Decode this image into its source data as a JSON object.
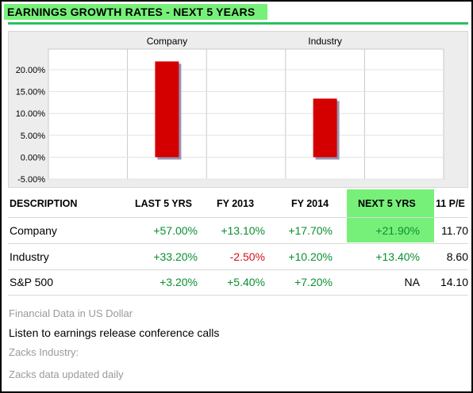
{
  "header": {
    "title": "EARNINGS GROWTH RATES - NEXT 5 YEARS"
  },
  "chart_data": {
    "type": "bar",
    "categories": [
      "Company",
      "Industry"
    ],
    "values": [
      21.9,
      13.4
    ],
    "yticks": [
      "20.00%",
      "15.00%",
      "10.00%",
      "5.00%",
      "0.00%",
      "-5.00%"
    ],
    "ylim": [
      -5,
      25
    ],
    "bar_color": "#d40000",
    "title": "",
    "xlabel": "",
    "ylabel": "",
    "grid": true
  },
  "table": {
    "columns": [
      "DESCRIPTION",
      "LAST 5 YRS",
      "FY 2013",
      "FY 2014",
      "NEXT 5 YRS",
      "11 P/E"
    ],
    "rows": [
      {
        "name": "Company",
        "last5": "+57.00%",
        "fy2013": "+13.10%",
        "fy2014": "+17.70%",
        "next5": "+21.90%",
        "pe": "11.70"
      },
      {
        "name": "Industry",
        "last5": "+33.20%",
        "fy2013": "-2.50%",
        "fy2014": "+10.20%",
        "next5": "+13.40%",
        "pe": "8.60"
      },
      {
        "name": "S&P 500",
        "last5": "+3.20%",
        "fy2013": "+5.40%",
        "fy2014": "+7.20%",
        "next5": "NA",
        "pe": "14.10"
      }
    ]
  },
  "footer": {
    "currency_note": "Financial Data in US Dollar",
    "conference_link": "Listen to earnings release conference calls",
    "industry_label": "Zacks Industry:",
    "update_note": "Zacks data updated daily"
  },
  "colors": {
    "accent": "#77f07a",
    "positive": "#0a8f2f",
    "negative": "#d4101a",
    "rule": "#2bbf62"
  }
}
